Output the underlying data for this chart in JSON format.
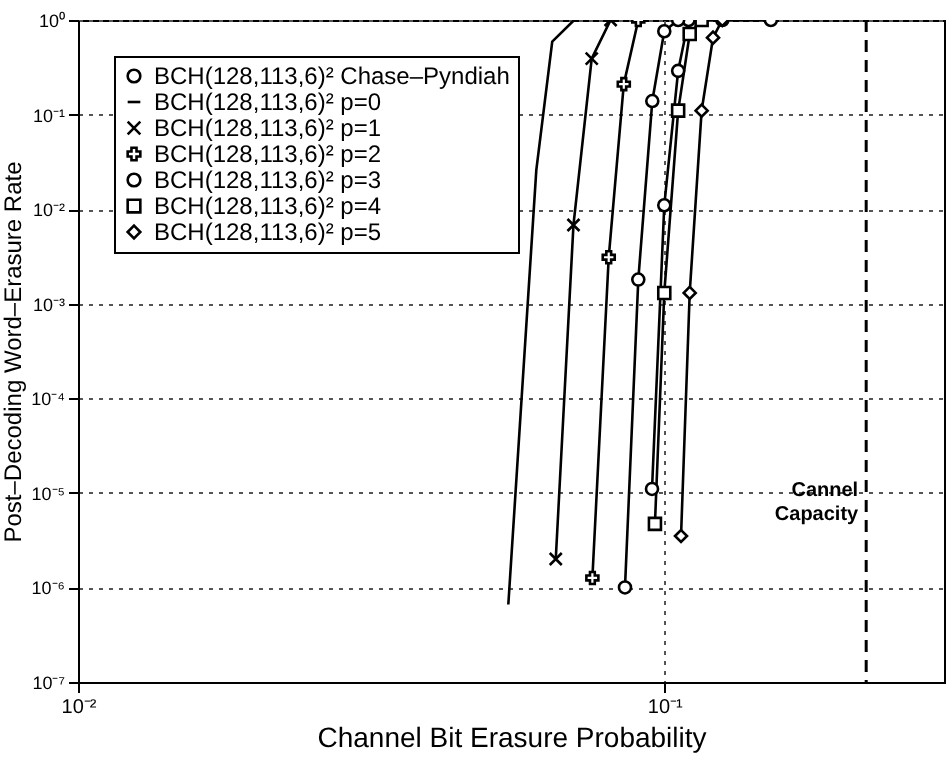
{
  "chart_data": {
    "type": "line",
    "xlabel": "Channel Bit Erasure Probability",
    "ylabel": "Post–Decoding Word–Erasure Rate",
    "log": "xy",
    "xlim": [
      0.01,
      0.3
    ],
    "ylim": [
      1e-07,
      1
    ],
    "xticks": [
      {
        "value": 0.01,
        "label": "10⁻²"
      },
      {
        "value": 0.1,
        "label": "10⁻¹"
      }
    ],
    "yticks": [
      {
        "value": 1e-07,
        "label": "10⁻⁷"
      },
      {
        "value": 1e-06,
        "label": "10⁻⁶"
      },
      {
        "value": 1e-05,
        "label": "10⁻⁵"
      },
      {
        "value": 0.0001,
        "label": "10⁻⁴"
      },
      {
        "value": 0.001,
        "label": "10⁻³"
      },
      {
        "value": 0.01,
        "label": "10⁻²"
      },
      {
        "value": 0.1,
        "label": "10⁻¹"
      },
      {
        "value": 1,
        "label": "10⁰"
      }
    ],
    "grid": true,
    "legend": "top left",
    "line_style": "solid",
    "series": [
      {
        "name": "BCH(128,113,6)² Chase–Pyndiah",
        "color": "#000000",
        "marker": "circle",
        "x": [
          0.0953,
          0.1,
          0.1056,
          0.11,
          0.1256,
          0.152
        ],
        "values": [
          1.1e-05,
          0.011,
          0.29,
          1,
          1,
          1
        ]
      },
      {
        "name": "BCH(128,113,6)² p=0",
        "color": "#000000",
        "marker": "none",
        "x": [
          0.0542,
          0.0605,
          0.0644,
          0.0702
        ],
        "values": [
          6.6e-07,
          0.026,
          0.59,
          1
        ]
      },
      {
        "name": "BCH(128,113,6)² p=1",
        "color": "#000000",
        "marker": "cross",
        "x": [
          0.0653,
          0.07,
          0.0752,
          0.081
        ],
        "values": [
          2e-06,
          0.0068,
          0.39,
          1
        ]
      },
      {
        "name": "BCH(128,113,6)² p=2",
        "color": "#000000",
        "marker": "plus",
        "x": [
          0.0754,
          0.0804,
          0.0853,
          0.0903
        ],
        "values": [
          1.26e-06,
          0.0031,
          0.21,
          1
        ]
      },
      {
        "name": "BCH(128,113,6)² p=3",
        "color": "#000000",
        "marker": "circle",
        "x": [
          0.0857,
          0.0903,
          0.0954,
          0.1,
          0.1056
        ],
        "values": [
          1e-06,
          0.0018,
          0.139,
          0.76,
          1
        ]
      },
      {
        "name": "BCH(128,113,6)² p=4",
        "color": "#000000",
        "marker": "square",
        "x": [
          0.0964,
          0.1,
          0.1056,
          0.1105,
          0.1158
        ],
        "values": [
          4.7e-06,
          0.0013,
          0.11,
          0.71,
          1
        ]
      },
      {
        "name": "BCH(128,113,6)² p=5",
        "color": "#000000",
        "marker": "diamond",
        "x": [
          0.1068,
          0.1105,
          0.1158,
          0.1211,
          0.1256
        ],
        "values": [
          3.5e-06,
          0.0013,
          0.11,
          0.65,
          1
        ]
      }
    ],
    "ref_lines": [
      {
        "axis": "x",
        "value": 0.221,
        "label": "Cannel Capacity",
        "line_style": "dashed"
      }
    ]
  }
}
